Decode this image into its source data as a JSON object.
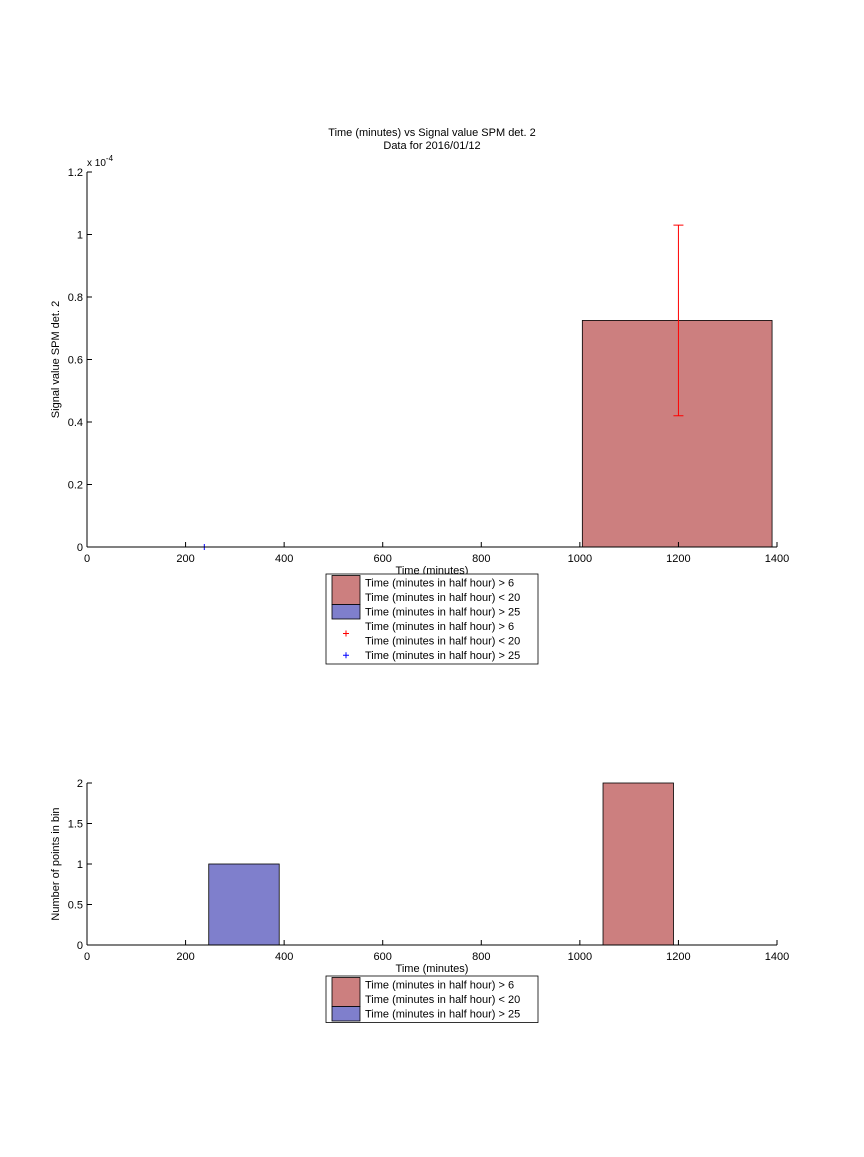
{
  "chart_data": [
    {
      "type": "bar",
      "title": "Time (minutes) vs Signal value SPM det. 2",
      "subtitle": "Data for 2016/01/12",
      "xlabel": "Time (minutes)",
      "ylabel": "Signal value SPM det. 2",
      "y_exponent_label": "x 10",
      "y_exponent_power": "-4",
      "xlim": [
        0,
        1400
      ],
      "ylim": [
        0,
        0.00012
      ],
      "x_ticks": [
        0,
        200,
        400,
        600,
        800,
        1000,
        1200,
        1400
      ],
      "y_ticks": [
        0,
        2e-05,
        4e-05,
        6e-05,
        8e-05,
        0.0001,
        0.00012
      ],
      "y_tick_labels": [
        "0",
        "0.2",
        "0.4",
        "0.6",
        "0.8",
        "1",
        "1.2"
      ],
      "grid": false,
      "legend_position": "below",
      "bars": [
        {
          "x0": 1005,
          "x1": 1390,
          "value": 7.25e-05,
          "color": "#cc7f7f",
          "series": 0
        }
      ],
      "errorbars": [
        {
          "x": 1200,
          "low": 4.2e-05,
          "high": 0.000103,
          "color": "#ff0000"
        }
      ],
      "markers": [
        {
          "x": 238,
          "y": 0.0,
          "symbol": "+",
          "color": "#0000ff"
        }
      ],
      "legend": [
        {
          "kind": "patch",
          "color": "#cc7f7f",
          "lines": [
            "Time (minutes in half hour) > 6",
            "Time (minutes in half hour) < 20"
          ]
        },
        {
          "kind": "patch",
          "color": "#7f7fcc",
          "lines": [
            "Time (minutes in half hour) > 25"
          ]
        },
        {
          "kind": "marker",
          "color": "#ff0000",
          "lines": [
            "Time (minutes in half hour) > 6",
            "Time (minutes in half hour) < 20"
          ]
        },
        {
          "kind": "marker",
          "color": "#0000ff",
          "lines": [
            "Time (minutes in half hour) > 25"
          ]
        }
      ]
    },
    {
      "type": "bar",
      "xlabel": "Time (minutes)",
      "ylabel": "Number of points in bin",
      "xlim": [
        0,
        1400
      ],
      "ylim": [
        0,
        2
      ],
      "x_ticks": [
        0,
        200,
        400,
        600,
        800,
        1000,
        1200,
        1400
      ],
      "y_ticks": [
        0,
        0.5,
        1,
        1.5,
        2
      ],
      "y_tick_labels": [
        "0",
        "0.5",
        "1",
        "1.5",
        "2"
      ],
      "grid": false,
      "legend_position": "below",
      "bars": [
        {
          "x0": 247,
          "x1": 390,
          "value": 1,
          "color": "#7f7fcc",
          "series": 1
        },
        {
          "x0": 1047,
          "x1": 1190,
          "value": 2,
          "color": "#cc7f7f",
          "series": 0
        }
      ],
      "errorbars": [],
      "markers": [],
      "legend": [
        {
          "kind": "patch",
          "color": "#cc7f7f",
          "lines": [
            "Time (minutes in half hour) > 6",
            "Time (minutes in half hour) < 20"
          ]
        },
        {
          "kind": "patch",
          "color": "#7f7fcc",
          "lines": [
            "Time (minutes in half hour) > 25"
          ]
        }
      ]
    }
  ]
}
